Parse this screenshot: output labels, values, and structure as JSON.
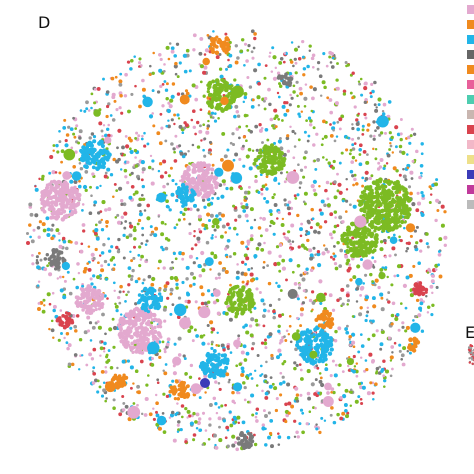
{
  "panel_label": "D",
  "side_panel_label": "E"
}
